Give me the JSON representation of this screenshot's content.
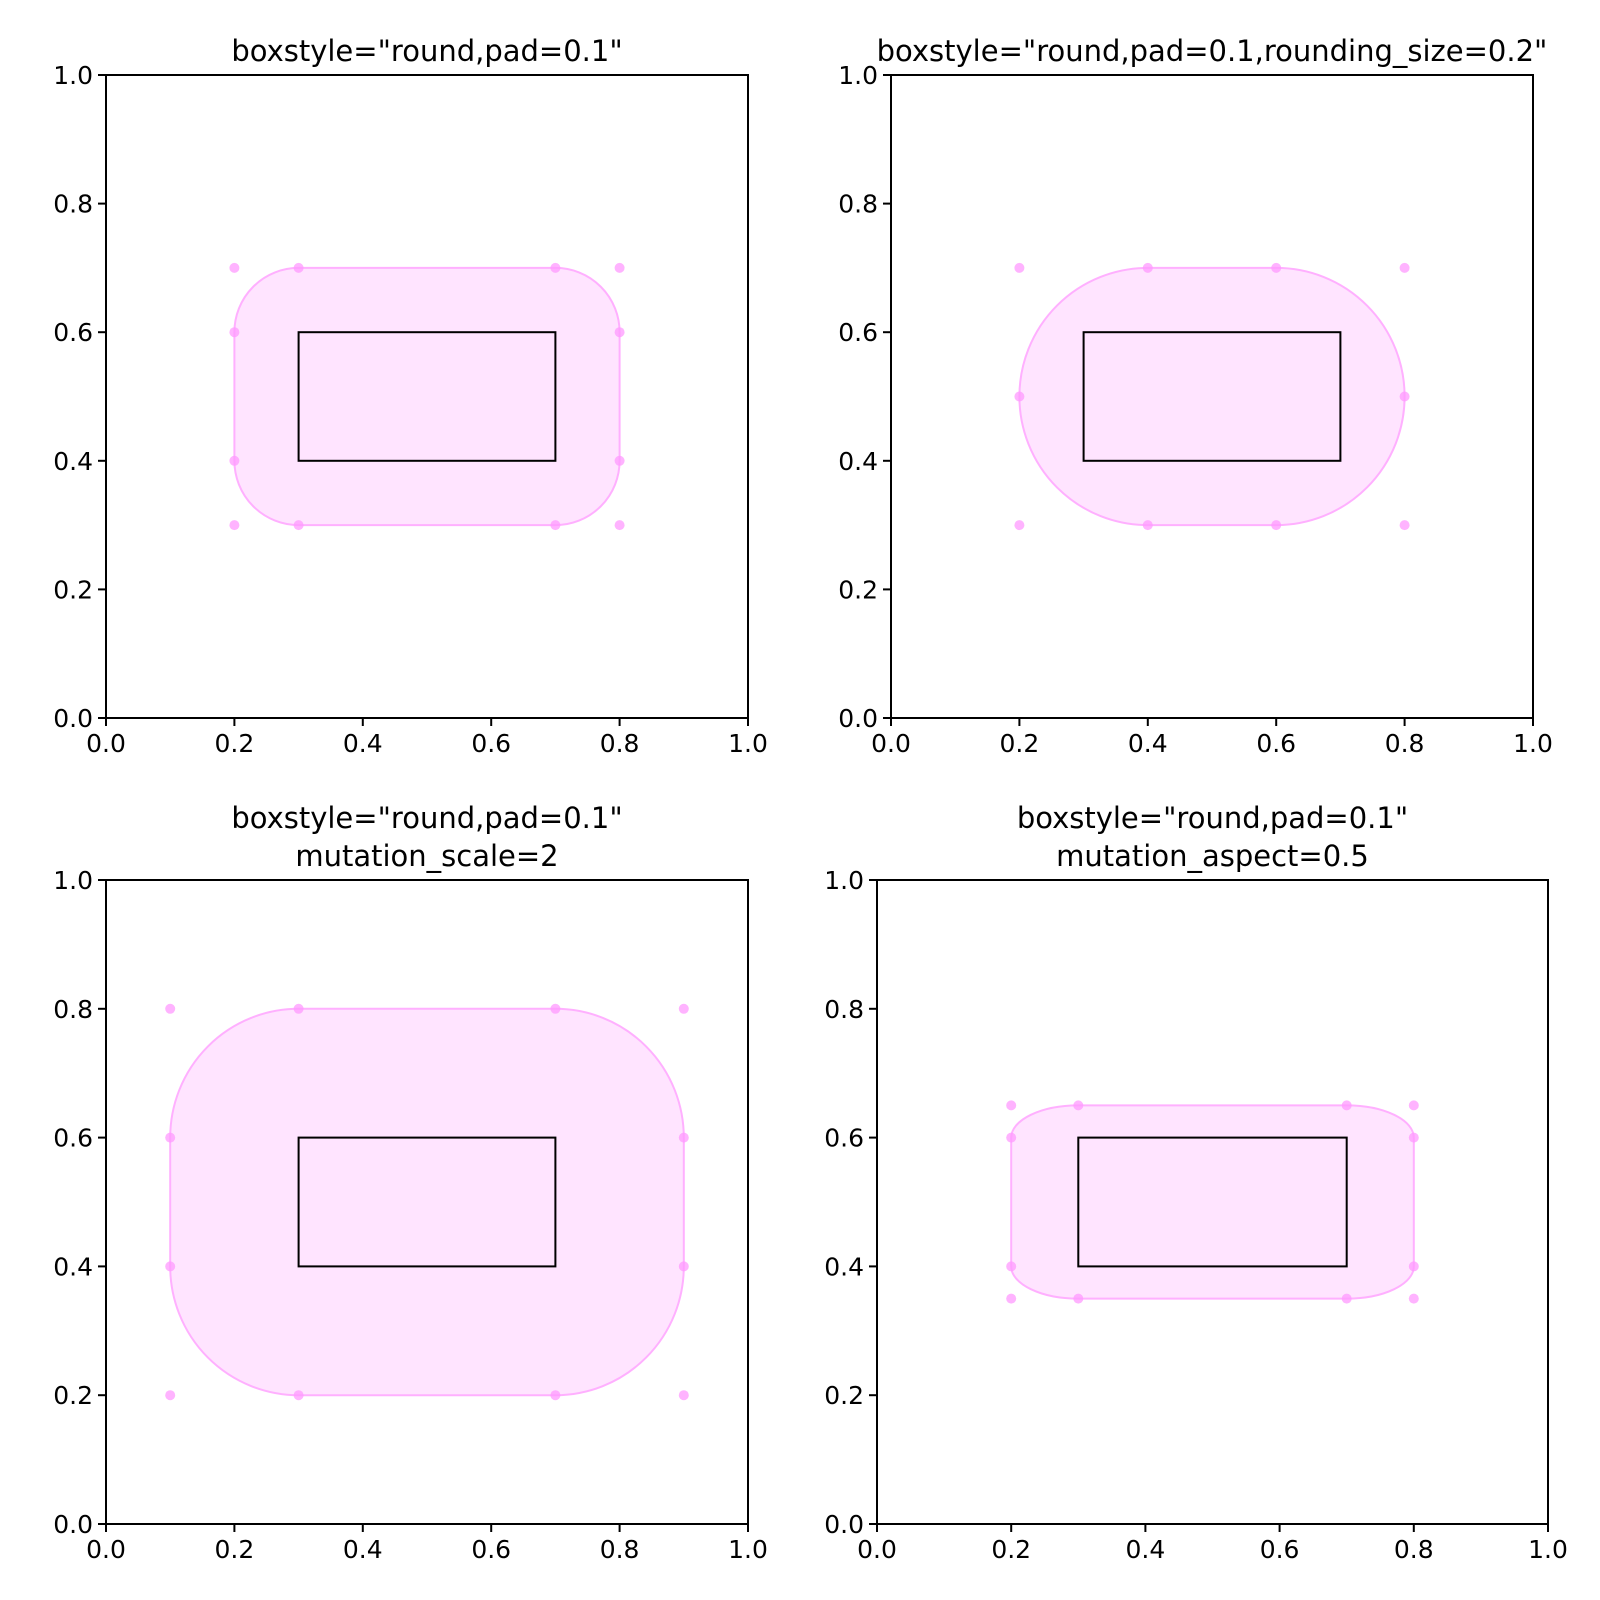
{
  "colors": {
    "box_fill": "#ffe4ff",
    "box_edge": "#ffb0ff",
    "control_point": "#ff99ff",
    "inner_rect_edge": "#000000",
    "axes_edge": "#000000"
  },
  "panels": [
    {
      "title_lines": [
        "boxstyle=\"round,pad=0.1\""
      ],
      "xlim": [
        0,
        1
      ],
      "ylim": [
        0,
        1
      ],
      "xticks": [
        "0.0",
        "0.2",
        "0.4",
        "0.6",
        "0.8",
        "1.0"
      ],
      "yticks": [
        "0.0",
        "0.2",
        "0.4",
        "0.6",
        "0.8",
        "1.0"
      ],
      "inner_rect": {
        "x0": 0.3,
        "y0": 0.4,
        "x1": 0.7,
        "y1": 0.6
      },
      "fancy_box": {
        "x0": 0.2,
        "y0": 0.3,
        "x1": 0.8,
        "y1": 0.7,
        "rx": 0.1,
        "ry": 0.1
      },
      "control_points": [
        [
          0.2,
          0.7
        ],
        [
          0.3,
          0.7
        ],
        [
          0.7,
          0.7
        ],
        [
          0.8,
          0.7
        ],
        [
          0.2,
          0.6
        ],
        [
          0.8,
          0.6
        ],
        [
          0.2,
          0.4
        ],
        [
          0.8,
          0.4
        ],
        [
          0.2,
          0.3
        ],
        [
          0.3,
          0.3
        ],
        [
          0.7,
          0.3
        ],
        [
          0.8,
          0.3
        ]
      ]
    },
    {
      "title_lines": [
        "boxstyle=\"round,pad=0.1,rounding_size=0.2\""
      ],
      "xlim": [
        0,
        1
      ],
      "ylim": [
        0,
        1
      ],
      "xticks": [
        "0.0",
        "0.2",
        "0.4",
        "0.6",
        "0.8",
        "1.0"
      ],
      "yticks": [
        "0.0",
        "0.2",
        "0.4",
        "0.6",
        "0.8",
        "1.0"
      ],
      "inner_rect": {
        "x0": 0.3,
        "y0": 0.4,
        "x1": 0.7,
        "y1": 0.6
      },
      "fancy_box": {
        "x0": 0.2,
        "y0": 0.3,
        "x1": 0.8,
        "y1": 0.7,
        "rx": 0.2,
        "ry": 0.2
      },
      "control_points": [
        [
          0.2,
          0.7
        ],
        [
          0.4,
          0.7
        ],
        [
          0.6,
          0.7
        ],
        [
          0.8,
          0.7
        ],
        [
          0.2,
          0.5
        ],
        [
          0.8,
          0.5
        ],
        [
          0.2,
          0.3
        ],
        [
          0.4,
          0.3
        ],
        [
          0.6,
          0.3
        ],
        [
          0.8,
          0.3
        ]
      ]
    },
    {
      "title_lines": [
        "boxstyle=\"round,pad=0.1\"",
        "mutation_scale=2"
      ],
      "xlim": [
        0,
        1
      ],
      "ylim": [
        0,
        1
      ],
      "xticks": [
        "0.0",
        "0.2",
        "0.4",
        "0.6",
        "0.8",
        "1.0"
      ],
      "yticks": [
        "0.0",
        "0.2",
        "0.4",
        "0.6",
        "0.8",
        "1.0"
      ],
      "inner_rect": {
        "x0": 0.3,
        "y0": 0.4,
        "x1": 0.7,
        "y1": 0.6
      },
      "fancy_box": {
        "x0": 0.1,
        "y0": 0.2,
        "x1": 0.9,
        "y1": 0.8,
        "rx": 0.2,
        "ry": 0.2
      },
      "control_points": [
        [
          0.1,
          0.8
        ],
        [
          0.3,
          0.8
        ],
        [
          0.7,
          0.8
        ],
        [
          0.9,
          0.8
        ],
        [
          0.1,
          0.6
        ],
        [
          0.9,
          0.6
        ],
        [
          0.1,
          0.4
        ],
        [
          0.9,
          0.4
        ],
        [
          0.1,
          0.2
        ],
        [
          0.3,
          0.2
        ],
        [
          0.7,
          0.2
        ],
        [
          0.9,
          0.2
        ]
      ]
    },
    {
      "title_lines": [
        "boxstyle=\"round,pad=0.1\"",
        "mutation_aspect=0.5"
      ],
      "xlim": [
        0,
        1
      ],
      "ylim": [
        0,
        1
      ],
      "xticks": [
        "0.0",
        "0.2",
        "0.4",
        "0.6",
        "0.8",
        "1.0"
      ],
      "yticks": [
        "0.0",
        "0.2",
        "0.4",
        "0.6",
        "0.8",
        "1.0"
      ],
      "inner_rect": {
        "x0": 0.3,
        "y0": 0.4,
        "x1": 0.7,
        "y1": 0.6
      },
      "fancy_box": {
        "x0": 0.2,
        "y0": 0.35,
        "x1": 0.8,
        "y1": 0.65,
        "rx": 0.1,
        "ry": 0.05
      },
      "control_points": [
        [
          0.2,
          0.65
        ],
        [
          0.3,
          0.65
        ],
        [
          0.7,
          0.65
        ],
        [
          0.8,
          0.65
        ],
        [
          0.2,
          0.6
        ],
        [
          0.8,
          0.6
        ],
        [
          0.2,
          0.4
        ],
        [
          0.8,
          0.4
        ],
        [
          0.2,
          0.35
        ],
        [
          0.3,
          0.35
        ],
        [
          0.7,
          0.35
        ],
        [
          0.8,
          0.35
        ]
      ]
    }
  ]
}
